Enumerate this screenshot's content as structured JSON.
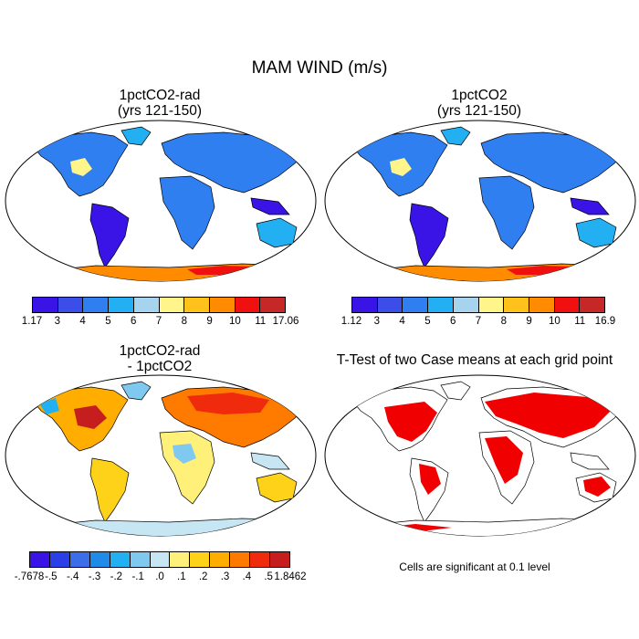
{
  "title": "MAM WIND (m/s)",
  "panels": [
    {
      "title_line1": "1pctCO2-rad",
      "title_line2": "(yrs 121-150)",
      "colorbar_labels": [
        "1.17",
        "3",
        "4",
        "5",
        "6",
        "7",
        "8",
        "9",
        "10",
        "11",
        "17.06"
      ]
    },
    {
      "title_line1": "1pctCO2",
      "title_line2": "(yrs 121-150)",
      "colorbar_labels": [
        "1.12",
        "3",
        "4",
        "5",
        "6",
        "7",
        "8",
        "9",
        "10",
        "11",
        "16.9"
      ]
    },
    {
      "title_line1": "1pctCO2-rad",
      "title_line2": "- 1pctCO2",
      "colorbar_labels": [
        "-.7678",
        "-.5",
        "-.4",
        "-.3",
        "-.2",
        "-.1",
        ".0",
        ".1",
        ".2",
        ".3",
        ".4",
        ".5",
        "1.8462"
      ]
    },
    {
      "title_line1": "T-Test of two Case means at each grid point",
      "title_line2": "",
      "note": "Cells are significant at 0.1 level"
    }
  ],
  "colors": {
    "wind_scale": [
      "#3a14e6",
      "#3c4ee8",
      "#2f7ff0",
      "#22b0f2",
      "#a6d3ee",
      "#fff58a",
      "#ffc21a",
      "#ff8c00",
      "#f01010",
      "#c62828"
    ],
    "diff_scale": [
      "#3a14e6",
      "#2a3fe6",
      "#3c6ee8",
      "#1f8be8",
      "#22b0f2",
      "#7fc9f0",
      "#c7e6f4",
      "#fff07a",
      "#ffd21a",
      "#ffae00",
      "#ff7b00",
      "#f02a0c",
      "#c61e1e"
    ],
    "significant": "#f00000"
  }
}
